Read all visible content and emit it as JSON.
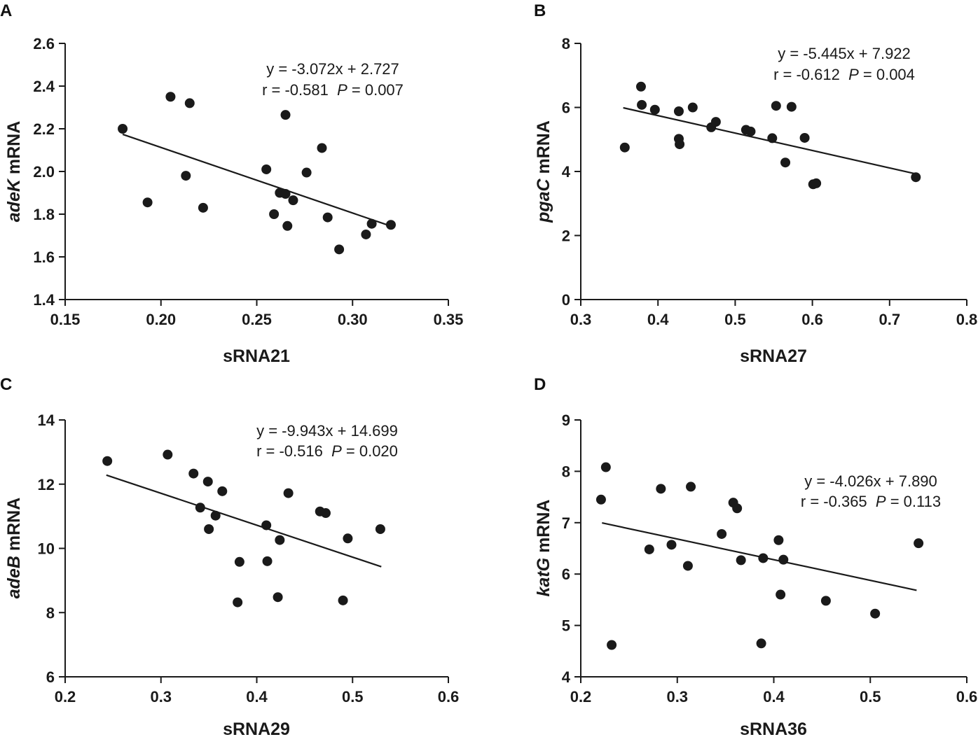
{
  "chart_data": [
    {
      "panel": "A",
      "type": "scatter",
      "xlabel": "sRNA21",
      "ylabel_gene": "adeK",
      "ylabel_suffix": " mRNA",
      "xlim": [
        0.15,
        0.35
      ],
      "ylim": [
        1.4,
        2.6
      ],
      "xticks": [
        "0.15",
        "0.20",
        "0.25",
        "0.30",
        "0.35"
      ],
      "yticks": [
        "1.4",
        "1.6",
        "1.8",
        "2.0",
        "2.2",
        "2.4",
        "2.6"
      ],
      "equation": "y = -3.072x + 2.727",
      "r_text": "r = -0.581",
      "p_symbol": "P",
      "p_text": " = 0.007",
      "fit": {
        "slope": -3.072,
        "intercept": 2.727,
        "x_range": [
          0.18,
          0.32
        ]
      },
      "points": [
        {
          "x": 0.18,
          "y": 2.2
        },
        {
          "x": 0.205,
          "y": 2.35
        },
        {
          "x": 0.215,
          "y": 2.32
        },
        {
          "x": 0.193,
          "y": 1.855
        },
        {
          "x": 0.213,
          "y": 1.98
        },
        {
          "x": 0.222,
          "y": 1.83
        },
        {
          "x": 0.255,
          "y": 2.01
        },
        {
          "x": 0.259,
          "y": 1.8
        },
        {
          "x": 0.262,
          "y": 1.9
        },
        {
          "x": 0.265,
          "y": 1.895
        },
        {
          "x": 0.265,
          "y": 2.265
        },
        {
          "x": 0.266,
          "y": 1.745
        },
        {
          "x": 0.269,
          "y": 1.865
        },
        {
          "x": 0.276,
          "y": 1.995
        },
        {
          "x": 0.284,
          "y": 2.11
        },
        {
          "x": 0.287,
          "y": 1.785
        },
        {
          "x": 0.293,
          "y": 1.635
        },
        {
          "x": 0.307,
          "y": 1.705
        },
        {
          "x": 0.31,
          "y": 1.755
        },
        {
          "x": 0.32,
          "y": 1.75
        }
      ]
    },
    {
      "panel": "B",
      "type": "scatter",
      "xlabel": "sRNA27",
      "ylabel_gene": "pgaC",
      "ylabel_suffix": " mRNA",
      "xlim": [
        0.3,
        0.8
      ],
      "ylim": [
        0,
        8
      ],
      "xticks": [
        "0.3",
        "0.4",
        "0.5",
        "0.6",
        "0.7",
        "0.8"
      ],
      "yticks": [
        "0",
        "2",
        "4",
        "6",
        "8"
      ],
      "equation": "y = -5.445x + 7.922",
      "r_text": "r = -0.612",
      "p_symbol": "P",
      "p_text": " = 0.004",
      "fit": {
        "slope": -5.445,
        "intercept": 7.922,
        "x_range": [
          0.355,
          0.735
        ]
      },
      "points": [
        {
          "x": 0.357,
          "y": 4.75
        },
        {
          "x": 0.378,
          "y": 6.65
        },
        {
          "x": 0.379,
          "y": 6.08
        },
        {
          "x": 0.396,
          "y": 5.93
        },
        {
          "x": 0.427,
          "y": 5.02
        },
        {
          "x": 0.427,
          "y": 5.88
        },
        {
          "x": 0.428,
          "y": 4.85
        },
        {
          "x": 0.445,
          "y": 6.0
        },
        {
          "x": 0.469,
          "y": 5.38
        },
        {
          "x": 0.475,
          "y": 5.55
        },
        {
          "x": 0.514,
          "y": 5.3
        },
        {
          "x": 0.52,
          "y": 5.25
        },
        {
          "x": 0.548,
          "y": 5.04
        },
        {
          "x": 0.553,
          "y": 6.05
        },
        {
          "x": 0.565,
          "y": 4.28
        },
        {
          "x": 0.573,
          "y": 6.02
        },
        {
          "x": 0.59,
          "y": 5.05
        },
        {
          "x": 0.601,
          "y": 3.6
        },
        {
          "x": 0.605,
          "y": 3.63
        },
        {
          "x": 0.734,
          "y": 3.82
        }
      ]
    },
    {
      "panel": "C",
      "type": "scatter",
      "xlabel": "sRNA29",
      "ylabel_gene": "adeB",
      "ylabel_suffix": " mRNA",
      "xlim": [
        0.2,
        0.6
      ],
      "ylim": [
        6,
        14
      ],
      "xticks": [
        "0.2",
        "0.3",
        "0.4",
        "0.5",
        "0.6"
      ],
      "yticks": [
        "6",
        "8",
        "10",
        "12",
        "14"
      ],
      "equation": "y = -9.943x + 14.699",
      "r_text": "r = -0.516",
      "p_symbol": "P",
      "p_text": " = 0.020",
      "fit": {
        "slope": -9.943,
        "intercept": 14.699,
        "x_range": [
          0.243,
          0.53
        ]
      },
      "points": [
        {
          "x": 0.244,
          "y": 12.72
        },
        {
          "x": 0.307,
          "y": 12.92
        },
        {
          "x": 0.334,
          "y": 12.33
        },
        {
          "x": 0.341,
          "y": 11.27
        },
        {
          "x": 0.349,
          "y": 12.08
        },
        {
          "x": 0.35,
          "y": 10.6
        },
        {
          "x": 0.357,
          "y": 11.02
        },
        {
          "x": 0.364,
          "y": 11.78
        },
        {
          "x": 0.38,
          "y": 8.32
        },
        {
          "x": 0.382,
          "y": 9.58
        },
        {
          "x": 0.41,
          "y": 10.72
        },
        {
          "x": 0.411,
          "y": 9.6
        },
        {
          "x": 0.422,
          "y": 8.48
        },
        {
          "x": 0.424,
          "y": 10.26
        },
        {
          "x": 0.433,
          "y": 11.72
        },
        {
          "x": 0.466,
          "y": 11.15
        },
        {
          "x": 0.472,
          "y": 11.1
        },
        {
          "x": 0.49,
          "y": 8.38
        },
        {
          "x": 0.495,
          "y": 10.31
        },
        {
          "x": 0.529,
          "y": 10.6
        }
      ]
    },
    {
      "panel": "D",
      "type": "scatter",
      "xlabel": "sRNA36",
      "ylabel_gene": "katG",
      "ylabel_suffix": " mRNA",
      "xlim": [
        0.2,
        0.6
      ],
      "ylim": [
        4,
        9
      ],
      "xticks": [
        "0.2",
        "0.3",
        "0.4",
        "0.5",
        "0.6"
      ],
      "yticks": [
        "4",
        "5",
        "6",
        "7",
        "8",
        "9"
      ],
      "equation": "y = -4.026x + 7.890",
      "r_text": "r = -0.365",
      "p_symbol": "P",
      "p_text": " = 0.113",
      "fit": {
        "slope": -4.026,
        "intercept": 7.89,
        "x_range": [
          0.222,
          0.548
        ]
      },
      "points": [
        {
          "x": 0.221,
          "y": 7.45
        },
        {
          "x": 0.226,
          "y": 8.08
        },
        {
          "x": 0.232,
          "y": 4.62
        },
        {
          "x": 0.271,
          "y": 6.48
        },
        {
          "x": 0.283,
          "y": 7.66
        },
        {
          "x": 0.294,
          "y": 6.57
        },
        {
          "x": 0.311,
          "y": 6.16
        },
        {
          "x": 0.314,
          "y": 7.7
        },
        {
          "x": 0.346,
          "y": 6.78
        },
        {
          "x": 0.358,
          "y": 7.39
        },
        {
          "x": 0.362,
          "y": 7.28
        },
        {
          "x": 0.366,
          "y": 6.27
        },
        {
          "x": 0.387,
          "y": 4.65
        },
        {
          "x": 0.389,
          "y": 6.31
        },
        {
          "x": 0.405,
          "y": 6.66
        },
        {
          "x": 0.407,
          "y": 5.6
        },
        {
          "x": 0.41,
          "y": 6.28
        },
        {
          "x": 0.454,
          "y": 5.48
        },
        {
          "x": 0.505,
          "y": 5.23
        },
        {
          "x": 0.55,
          "y": 6.6
        }
      ]
    }
  ]
}
